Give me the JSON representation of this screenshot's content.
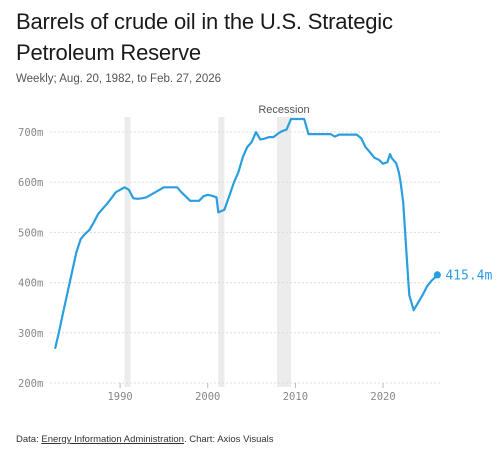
{
  "header": {
    "title": "Barrels of crude oil in the U.S. Strategic Petroleum Reserve",
    "subtitle": "Weekly; Aug. 20, 1982, to Feb. 27, 2026"
  },
  "footer": {
    "prefix": "Data: ",
    "source_link": "Energy Information Administration",
    "suffix": ". Chart: Axios Visuals"
  },
  "chart_data": {
    "type": "line",
    "title": "Barrels of crude oil in the U.S. Strategic Petroleum Reserve",
    "subtitle": "Weekly; Aug. 20, 1982, to Feb. 27, 2026",
    "xlabel": "",
    "ylabel": "",
    "xlim": [
      1982.0,
      2026.5
    ],
    "ylim": [
      200,
      730
    ],
    "x_ticks": [
      1990,
      2000,
      2010,
      2020
    ],
    "y_ticks": [
      200,
      300,
      400,
      500,
      600,
      700
    ],
    "y_tick_labels": [
      "200m",
      "300m",
      "400m",
      "500m",
      "600m",
      "700m"
    ],
    "grid": "horizontal",
    "line_color": "#2a9fe0",
    "shade_color": "#ececec",
    "recessions": [
      {
        "start": 1990.5,
        "end": 1991.2,
        "label": ""
      },
      {
        "start": 2001.2,
        "end": 2001.9,
        "label": ""
      },
      {
        "start": 2007.9,
        "end": 2009.5,
        "label": "Recession"
      }
    ],
    "end_label": "415.4m",
    "series": [
      {
        "name": "",
        "x": [
          1982.6,
          1983.0,
          1983.5,
          1984.0,
          1984.5,
          1985.0,
          1985.5,
          1986.0,
          1986.5,
          1987.0,
          1987.5,
          1988.0,
          1988.5,
          1989.0,
          1989.5,
          1990.0,
          1990.5,
          1991.0,
          1991.5,
          1992.0,
          1992.5,
          1993.0,
          1993.5,
          1994.0,
          1995.0,
          1996.0,
          1996.5,
          1997.0,
          1998.0,
          1999.0,
          1999.5,
          2000.0,
          2000.5,
          2001.0,
          2001.2,
          2001.9,
          2002.5,
          2003.0,
          2003.5,
          2004.0,
          2004.5,
          2005.0,
          2005.5,
          2006.0,
          2006.5,
          2007.0,
          2007.5,
          2008.0,
          2008.5,
          2009.0,
          2009.5,
          2010.0,
          2011.0,
          2011.5,
          2012.0,
          2013.0,
          2014.0,
          2014.5,
          2015.0,
          2016.0,
          2017.0,
          2017.5,
          2018.0,
          2018.5,
          2019.0,
          2019.5,
          2020.0,
          2020.5,
          2020.8,
          2021.0,
          2021.5,
          2021.8,
          2022.0,
          2022.3,
          2022.6,
          2022.9,
          2023.0,
          2023.5,
          2024.0,
          2024.5,
          2025.0,
          2025.5,
          2026.2
        ],
        "values": [
          270,
          300,
          340,
          380,
          420,
          460,
          487,
          497,
          505,
          520,
          537,
          547,
          557,
          568,
          580,
          585,
          590,
          585,
          568,
          567,
          568,
          570,
          575,
          580,
          590,
          590,
          590,
          580,
          563,
          563,
          572,
          575,
          573,
          570,
          540,
          545,
          575,
          600,
          620,
          650,
          670,
          680,
          700,
          685,
          687,
          690,
          690,
          697,
          702,
          705,
          726,
          726,
          726,
          696,
          696,
          696,
          696,
          691,
          695,
          695,
          695,
          688,
          670,
          660,
          649,
          645,
          637,
          640,
          656,
          648,
          638,
          620,
          600,
          560,
          480,
          400,
          375,
          345,
          360,
          375,
          392,
          403,
          415.4
        ]
      }
    ]
  }
}
